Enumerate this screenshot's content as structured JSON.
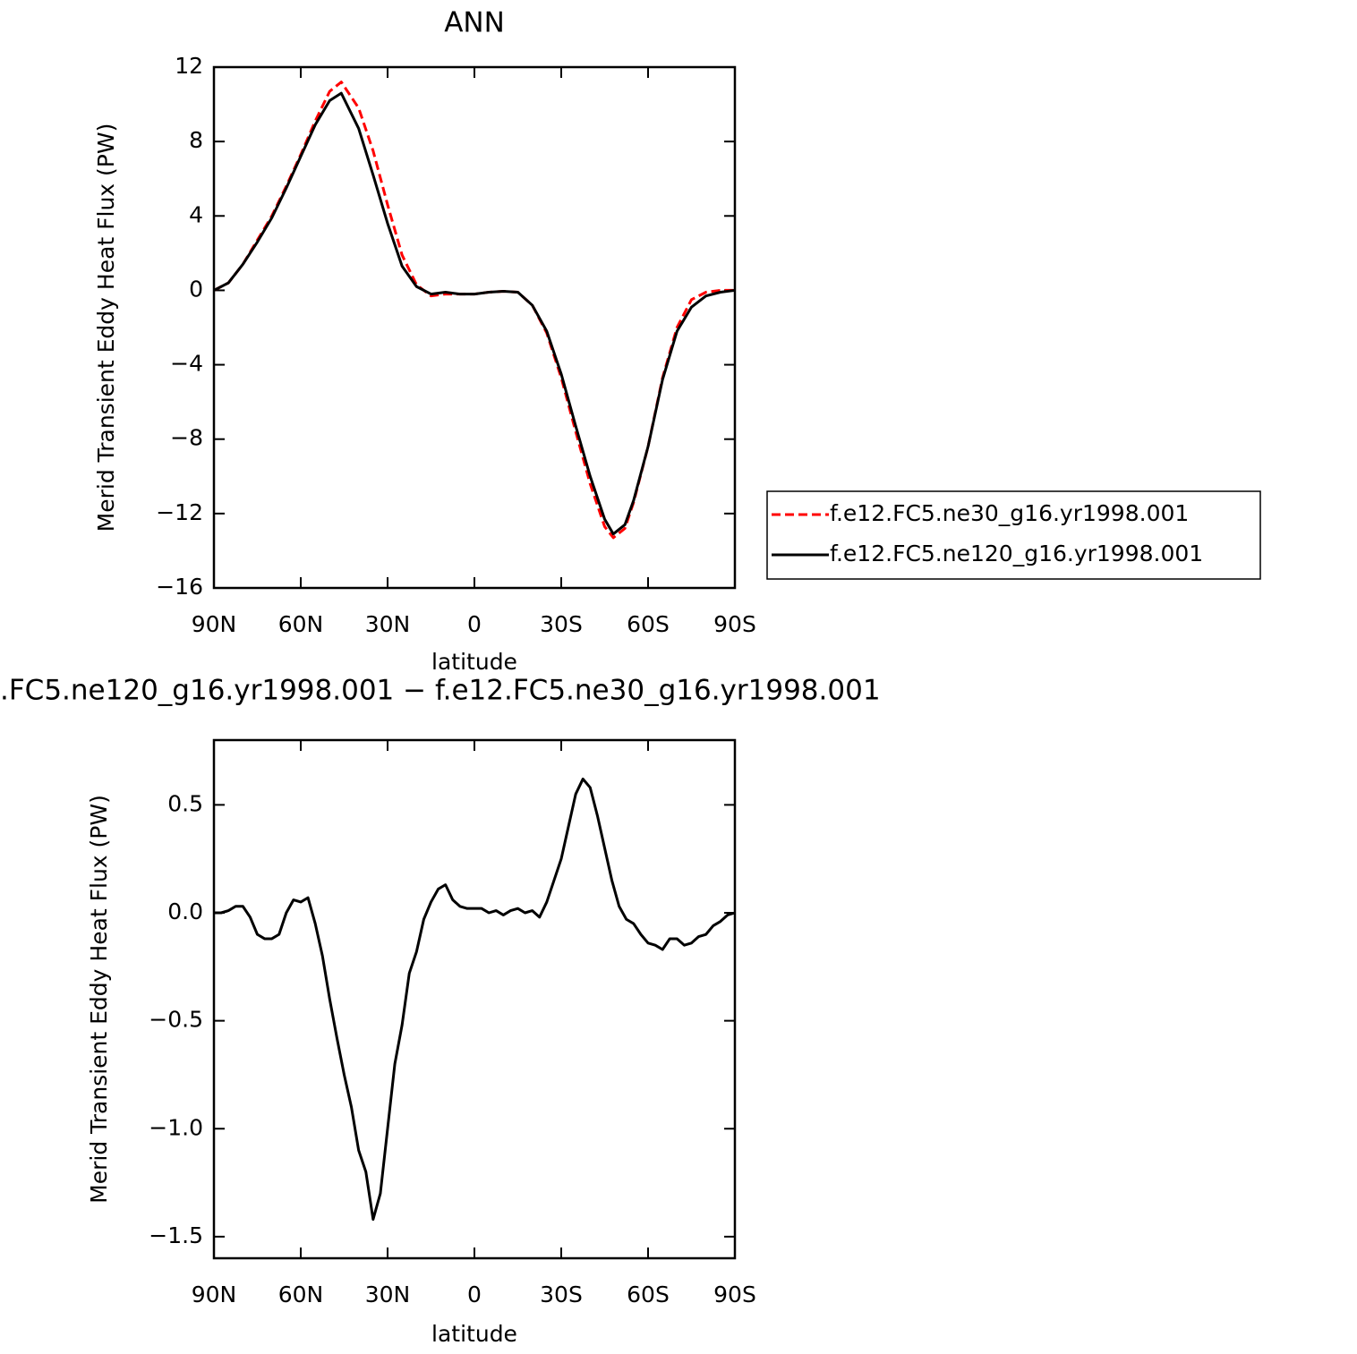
{
  "chart_data": [
    {
      "type": "line",
      "title": "ANN",
      "xlabel": "latitude",
      "ylabel": "Merid Transient Eddy Heat Flux (PW)",
      "x": [
        90,
        85,
        80,
        75,
        70,
        65,
        60,
        55,
        50,
        46,
        40,
        35,
        30,
        25,
        20,
        15,
        10,
        5,
        0,
        -5,
        -10,
        -15,
        -20,
        -25,
        -30,
        -35,
        -40,
        -45,
        -48,
        -52,
        -55,
        -60,
        -65,
        -70,
        -75,
        -80,
        -85,
        -90
      ],
      "series": [
        {
          "name": "f.e12.FC5.ne30_g16.yr1998.001",
          "color": "#ff0000",
          "style": "dashed",
          "values": [
            0,
            0.4,
            1.4,
            2.7,
            4.0,
            5.6,
            7.3,
            9.1,
            10.7,
            11.2,
            9.8,
            7.5,
            4.6,
            1.9,
            0.3,
            -0.3,
            -0.2,
            -0.2,
            -0.2,
            -0.1,
            -0.05,
            -0.1,
            -0.8,
            -2.3,
            -4.7,
            -7.6,
            -10.4,
            -12.7,
            -13.3,
            -12.8,
            -11.4,
            -8.4,
            -4.7,
            -2.0,
            -0.5,
            -0.1,
            0,
            0
          ]
        },
        {
          "name": "f.e12.FC5.ne120_g16.yr1998.001",
          "color": "#000000",
          "style": "solid",
          "values": [
            0,
            0.4,
            1.4,
            2.6,
            3.9,
            5.5,
            7.2,
            8.9,
            10.2,
            10.6,
            8.7,
            6.2,
            3.6,
            1.3,
            0.2,
            -0.2,
            -0.1,
            -0.2,
            -0.2,
            -0.1,
            -0.05,
            -0.1,
            -0.8,
            -2.2,
            -4.5,
            -7.3,
            -10.0,
            -12.3,
            -13.1,
            -12.6,
            -11.3,
            -8.4,
            -4.8,
            -2.2,
            -0.9,
            -0.3,
            -0.1,
            0
          ]
        }
      ],
      "xlim": [
        90,
        -90
      ],
      "xticks": [
        {
          "value": 90,
          "label": "90N"
        },
        {
          "value": 60,
          "label": "60N"
        },
        {
          "value": 30,
          "label": "30N"
        },
        0,
        {
          "value": -30,
          "label": "30S"
        },
        {
          "value": -60,
          "label": "60S"
        },
        {
          "value": -90,
          "label": "90S"
        }
      ],
      "ylim": [
        -16,
        12
      ],
      "yticks": [
        12,
        8,
        4,
        0,
        {
          "value": -4,
          "label": "−4"
        },
        {
          "value": -8,
          "label": "−8"
        },
        {
          "value": -12,
          "label": "−12"
        },
        {
          "value": -16,
          "label": "−16"
        }
      ],
      "legend": "right"
    },
    {
      "type": "line",
      "title": ".FC5.ne120_g16.yr1998.001 − f.e12.FC5.ne30_g16.yr1998.001",
      "xlabel": "latitude",
      "ylabel": "Merid Transient Eddy Heat Flux (PW)",
      "x": [
        90,
        87.5,
        85,
        82.5,
        80,
        77.5,
        75,
        72.5,
        70,
        67.5,
        65,
        62.5,
        60,
        57.5,
        55,
        52.5,
        50,
        47.5,
        45,
        42.5,
        40,
        37.5,
        35,
        32.5,
        30,
        27.5,
        25,
        22.5,
        20,
        17.5,
        15,
        12.5,
        10,
        7.5,
        5,
        2.5,
        0,
        -2.5,
        -5,
        -7.5,
        -10,
        -12.5,
        -15,
        -17.5,
        -20,
        -22.5,
        -25,
        -27.5,
        -30,
        -32.5,
        -35,
        -37.5,
        -40,
        -42.5,
        -45,
        -47.5,
        -50,
        -52.5,
        -55,
        -57.5,
        -60,
        -62.5,
        -65,
        -67.5,
        -70,
        -72.5,
        -75,
        -77.5,
        -80,
        -82.5,
        -85,
        -87.5,
        -90
      ],
      "values": [
        0,
        0,
        0.01,
        0.03,
        0.03,
        -0.02,
        -0.1,
        -0.12,
        -0.12,
        -0.1,
        0.0,
        0.06,
        0.05,
        0.07,
        -0.05,
        -0.2,
        -0.4,
        -0.58,
        -0.75,
        -0.9,
        -1.1,
        -1.2,
        -1.42,
        -1.3,
        -1.0,
        -0.7,
        -0.52,
        -0.28,
        -0.18,
        -0.03,
        0.05,
        0.11,
        0.13,
        0.06,
        0.03,
        0.02,
        0.02,
        0.02,
        0,
        0.01,
        -0.01,
        0.01,
        0.02,
        0,
        0.01,
        -0.02,
        0.05,
        0.15,
        0.25,
        0.4,
        0.55,
        0.62,
        0.58,
        0.45,
        0.3,
        0.15,
        0.03,
        -0.03,
        -0.05,
        -0.1,
        -0.14,
        -0.15,
        -0.17,
        -0.12,
        -0.12,
        -0.15,
        -0.14,
        -0.11,
        -0.1,
        -0.06,
        -0.04,
        -0.01,
        0
      ],
      "color": "#000000",
      "xlim": [
        90,
        -90
      ],
      "xticks": [
        {
          "value": 90,
          "label": "90N"
        },
        {
          "value": 60,
          "label": "60N"
        },
        {
          "value": 30,
          "label": "30N"
        },
        0,
        {
          "value": -30,
          "label": "30S"
        },
        {
          "value": -60,
          "label": "60S"
        },
        {
          "value": -90,
          "label": "90S"
        }
      ],
      "ylim": [
        -1.6,
        0.8
      ],
      "yticks": [
        0.5,
        {
          "value": 0,
          "label": "0.0"
        },
        {
          "value": -0.5,
          "label": "−0.5"
        },
        {
          "value": -1,
          "label": "−1.0"
        },
        {
          "value": -1.5,
          "label": "−1.5"
        }
      ]
    }
  ]
}
